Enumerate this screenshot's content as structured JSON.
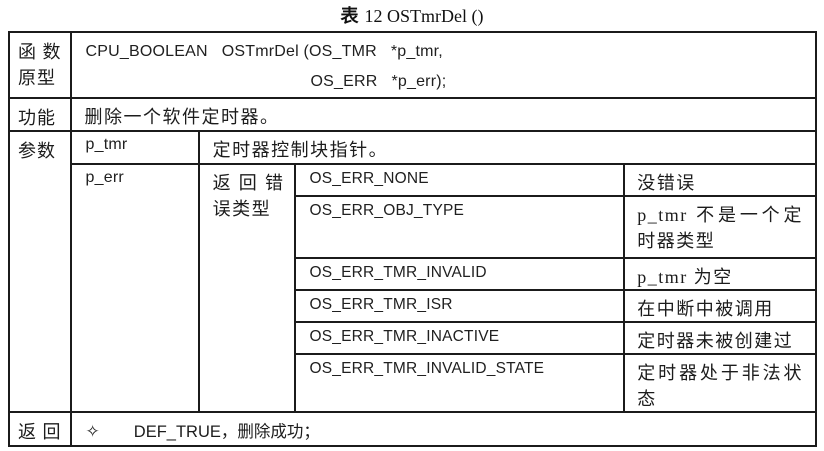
{
  "title": {
    "prefix": "表",
    "rest": "12 OSTmrDel ()"
  },
  "table": {
    "function_prototype": {
      "row_label": "函数原型",
      "line1": "CPU_BOOLEAN   OSTmrDel (OS_TMR   *p_tmr,",
      "line2": "OS_ERR   *p_err);"
    },
    "function_desc": {
      "row_label": "功能",
      "text": "删除一个软件定时器。"
    },
    "params": {
      "row_label": "参数",
      "p_tmr": {
        "name": "p_tmr",
        "desc": "定时器控制块指针。"
      },
      "p_err": {
        "name": "p_err",
        "type_label": "返回错误类型",
        "errors": [
          {
            "code": "OS_ERR_NONE",
            "desc": "没错误"
          },
          {
            "code": "OS_ERR_OBJ_TYPE",
            "desc": "p_tmr 不是一个定时器类型"
          },
          {
            "code": "OS_ERR_TMR_INVALID",
            "desc": "p_tmr 为空"
          },
          {
            "code": "OS_ERR_TMR_ISR",
            "desc": "在中断中被调用"
          },
          {
            "code": "OS_ERR_TMR_INACTIVE",
            "desc": "定时器未被创建过"
          },
          {
            "code": "OS_ERR_TMR_INVALID_STATE",
            "desc": "定时器处于非法状态"
          }
        ]
      }
    },
    "returns": {
      "row_label": "返回",
      "bullet": "✧",
      "text": "DEF_TRUE，删除成功；"
    }
  }
}
